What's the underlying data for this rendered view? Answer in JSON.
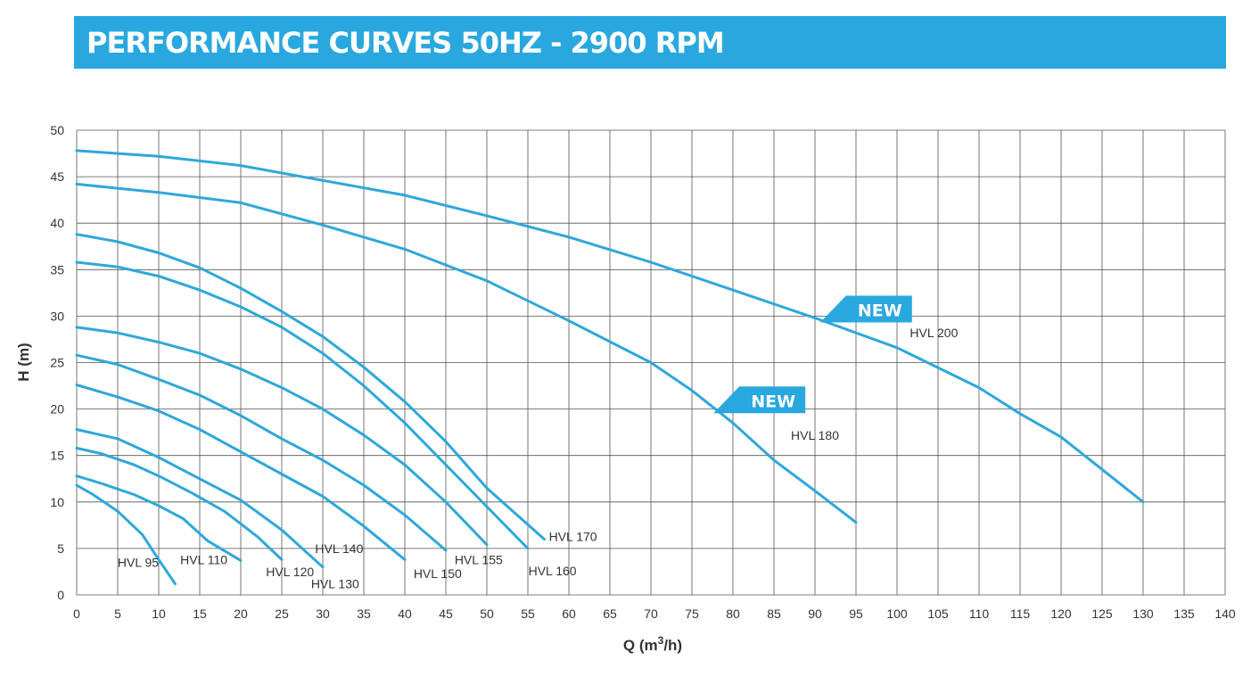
{
  "title": "PERFORMANCE CURVES 50HZ - 2900 RPM",
  "colors": {
    "accent": "#29a8df",
    "curve": "#2fa7d9",
    "grid": "#555555",
    "text": "#333333"
  },
  "chart_data": {
    "type": "line",
    "xlabel": "Q (m³/h)",
    "ylabel": "H (m)",
    "xlim": [
      0,
      140
    ],
    "ylim": [
      0,
      50
    ],
    "xticks": [
      0,
      5,
      10,
      15,
      20,
      25,
      30,
      35,
      40,
      45,
      50,
      55,
      60,
      65,
      70,
      75,
      80,
      85,
      90,
      95,
      100,
      105,
      110,
      115,
      120,
      125,
      130,
      135,
      140
    ],
    "yticks": [
      0,
      5,
      10,
      15,
      20,
      25,
      30,
      35,
      40,
      45,
      50
    ],
    "grid": true,
    "series": [
      {
        "name": "HVL 95",
        "label_at": [
          7.5,
          3.5
        ],
        "points": [
          [
            0,
            11.8
          ],
          [
            2,
            10.8
          ],
          [
            5,
            9
          ],
          [
            8,
            6.5
          ],
          [
            10,
            3.8
          ],
          [
            12,
            1.2
          ]
        ]
      },
      {
        "name": "HVL 110",
        "label_at": [
          15.5,
          3.8
        ],
        "points": [
          [
            0,
            12.8
          ],
          [
            3,
            12
          ],
          [
            7,
            10.8
          ],
          [
            10,
            9.6
          ],
          [
            13,
            8.2
          ],
          [
            16,
            5.8
          ],
          [
            20,
            3.7
          ]
        ]
      },
      {
        "name": "HVL 120",
        "label_at": [
          26,
          2.5
        ],
        "points": [
          [
            0,
            15.8
          ],
          [
            3,
            15.2
          ],
          [
            7,
            14
          ],
          [
            10,
            12.8
          ],
          [
            14,
            11
          ],
          [
            18,
            9
          ],
          [
            22,
            6.3
          ],
          [
            25,
            3.8
          ]
        ]
      },
      {
        "name": "HVL 130",
        "label_at": [
          31.5,
          1.2
        ],
        "points": [
          [
            0,
            17.8
          ],
          [
            5,
            16.8
          ],
          [
            10,
            14.8
          ],
          [
            15,
            12.5
          ],
          [
            20,
            10.2
          ],
          [
            25,
            7
          ],
          [
            30,
            3
          ]
        ]
      },
      {
        "name": "HVL 140",
        "label_at": [
          32,
          5
        ],
        "points": [
          [
            0,
            22.6
          ],
          [
            5,
            21.3
          ],
          [
            10,
            19.8
          ],
          [
            15,
            17.8
          ],
          [
            20,
            15.4
          ],
          [
            25,
            13
          ],
          [
            30,
            10.6
          ],
          [
            35,
            7.4
          ],
          [
            40,
            3.8
          ]
        ]
      },
      {
        "name": "HVL 150",
        "label_at": [
          44,
          2.3
        ],
        "points": [
          [
            0,
            25.8
          ],
          [
            5,
            24.8
          ],
          [
            10,
            23.2
          ],
          [
            15,
            21.5
          ],
          [
            20,
            19.3
          ],
          [
            25,
            16.8
          ],
          [
            30,
            14.5
          ],
          [
            35,
            11.8
          ],
          [
            40,
            8.6
          ],
          [
            45,
            4.8
          ]
        ]
      },
      {
        "name": "HVL 155",
        "label_at": [
          49,
          3.8
        ],
        "points": [
          [
            0,
            28.8
          ],
          [
            5,
            28.2
          ],
          [
            10,
            27.2
          ],
          [
            15,
            26
          ],
          [
            20,
            24.3
          ],
          [
            25,
            22.3
          ],
          [
            30,
            20
          ],
          [
            35,
            17.2
          ],
          [
            40,
            14
          ],
          [
            45,
            10
          ],
          [
            50,
            5.4
          ]
        ]
      },
      {
        "name": "HVL 160",
        "label_at": [
          58,
          2.6
        ],
        "points": [
          [
            0,
            35.8
          ],
          [
            5,
            35.3
          ],
          [
            10,
            34.3
          ],
          [
            15,
            32.8
          ],
          [
            20,
            31
          ],
          [
            25,
            28.8
          ],
          [
            30,
            26
          ],
          [
            35,
            22.5
          ],
          [
            40,
            18.5
          ],
          [
            45,
            14
          ],
          [
            50,
            9.5
          ],
          [
            55,
            5
          ]
        ]
      },
      {
        "name": "HVL 170",
        "label_at": [
          60.5,
          6.3
        ],
        "points": [
          [
            0,
            38.8
          ],
          [
            5,
            38
          ],
          [
            10,
            36.8
          ],
          [
            15,
            35.2
          ],
          [
            20,
            33
          ],
          [
            25,
            30.5
          ],
          [
            30,
            27.8
          ],
          [
            35,
            24.5
          ],
          [
            40,
            20.8
          ],
          [
            45,
            16.5
          ],
          [
            50,
            11.5
          ],
          [
            57,
            6
          ]
        ]
      },
      {
        "name": "HVL 180",
        "label_at": [
          90,
          17.2
        ],
        "points": [
          [
            0,
            44.2
          ],
          [
            10,
            43.3
          ],
          [
            20,
            42.2
          ],
          [
            30,
            39.8
          ],
          [
            40,
            37.2
          ],
          [
            50,
            33.8
          ],
          [
            60,
            29.5
          ],
          [
            70,
            25
          ],
          [
            75,
            22
          ],
          [
            80,
            18.5
          ],
          [
            85,
            14.5
          ],
          [
            90,
            11.2
          ],
          [
            95,
            7.8
          ]
        ]
      },
      {
        "name": "HVL 200",
        "label_at": [
          104.5,
          28.2
        ],
        "points": [
          [
            0,
            47.8
          ],
          [
            10,
            47.2
          ],
          [
            20,
            46.2
          ],
          [
            30,
            44.6
          ],
          [
            40,
            43
          ],
          [
            50,
            40.8
          ],
          [
            60,
            38.5
          ],
          [
            70,
            35.8
          ],
          [
            80,
            32.8
          ],
          [
            90,
            29.8
          ],
          [
            100,
            26.6
          ],
          [
            110,
            22.3
          ],
          [
            115,
            19.5
          ],
          [
            120,
            17
          ],
          [
            125,
            13.5
          ],
          [
            130,
            10
          ]
        ]
      }
    ],
    "annotations": [
      {
        "text": "NEW",
        "points_to": "HVL 200"
      },
      {
        "text": "NEW",
        "points_to": "HVL 180"
      }
    ]
  }
}
